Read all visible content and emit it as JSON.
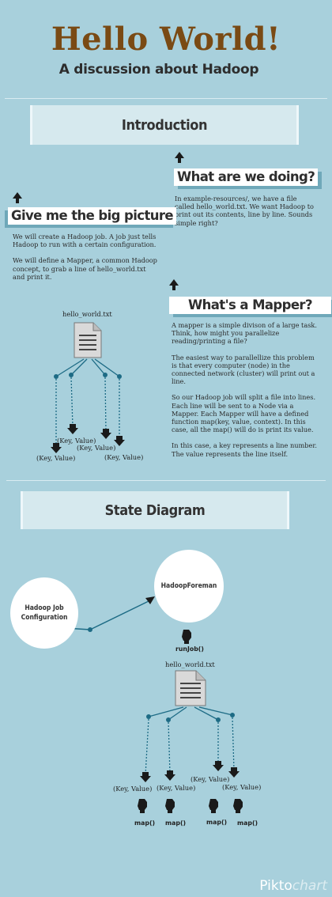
{
  "header": {
    "title": "Hello World!",
    "subtitle": "A discussion about Hadoop"
  },
  "sections": {
    "introduction": "Introduction",
    "state_diagram": "State Diagram"
  },
  "what_doing": {
    "heading": "What are we doing?",
    "text": "In example-resources/, we have a file called hello_world.txt. We want Hadoop to print out its contents, line by line. Sounds simple right?"
  },
  "big_picture": {
    "heading": "Give me the big picture",
    "p1": "We will create a Hadoop job. A job just tells Hadoop to run with a certain configuration.",
    "p2": "We will define a Mapper, a common Hadoop concept, to grab a line of hello_world.txt and print it."
  },
  "mapper": {
    "heading": "What's a Mapper?",
    "p1": "A mapper is a simple divison of a large task. Think, how might you parallelize reading/printing a file?",
    "p2": "The easiest way to parallellize this problem is that every computer (node) in the connected network (cluster) will print out a line.",
    "p3": "So our Hadoop job will split a file into lines. Each line will be sent to a Node via a Mapper. Each Mapper will have a defined function map(key, value, context). In this case, all the map() will do is print its value.",
    "p4": "In this case, a key represents a line number. The value represents the line itself."
  },
  "diagram1": {
    "file_label": "hello_world.txt",
    "kv_labels": [
      "(Key, Value)",
      "(Key, Value)",
      "(Key, Value)",
      "(Key, Value)"
    ]
  },
  "diagram2": {
    "job_config": "Hadoop Job Configuration",
    "foreman": "HadoopForeman",
    "run_label": "runJob()",
    "file_label": "hello_world.txt",
    "kv_labels": [
      "(Key, Value)",
      "(Key, Value)",
      "(Key, Value)",
      "(Key, Value)"
    ],
    "map_labels": [
      "map()",
      "map()",
      "map()",
      "map()"
    ]
  },
  "brand": {
    "part1": "Pikto",
    "part2": "chart"
  },
  "colors": {
    "background": "#a8d0dc",
    "title": "#7a4a14",
    "banner": "#d6e9ee",
    "connector": "#1d6b85"
  }
}
